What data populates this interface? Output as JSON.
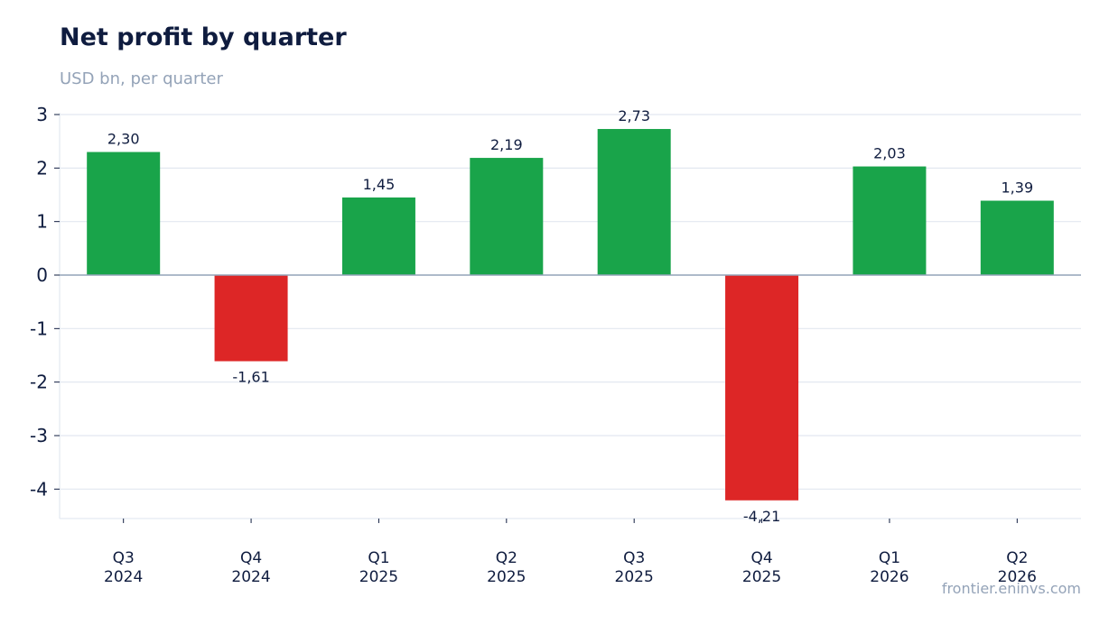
{
  "title": "Net profit by quarter",
  "subtitle": "USD bn, per quarter",
  "source": "frontier.eninvs.com",
  "colors": {
    "positive": "#19a44a",
    "negative": "#dd2626",
    "grid": "#e2e8f0",
    "zero_line": "#94a3b8",
    "text": "#0f1c3f",
    "muted": "#94a3b8"
  },
  "chart_data": {
    "type": "bar",
    "categories": [
      [
        "Q3",
        "2024"
      ],
      [
        "Q4",
        "2024"
      ],
      [
        "Q1",
        "2025"
      ],
      [
        "Q2",
        "2025"
      ],
      [
        "Q3",
        "2025"
      ],
      [
        "Q4",
        "2025"
      ],
      [
        "Q1",
        "2026"
      ],
      [
        "Q2",
        "2026"
      ]
    ],
    "values": [
      2.3,
      -1.61,
      1.45,
      2.19,
      2.73,
      -4.21,
      2.03,
      1.39
    ],
    "value_labels": [
      "2,30",
      "-1,61",
      "1,45",
      "2,19",
      "2,73",
      "-4,21",
      "2,03",
      "1,39"
    ],
    "yticks": [
      3,
      2,
      1,
      0,
      -1,
      -2,
      -3,
      -4
    ],
    "ytick_labels": [
      "3",
      "2",
      "1",
      "0",
      "-1",
      "-2",
      "-3",
      "-4"
    ],
    "ylim": [
      -4.55,
      3
    ],
    "grid": true,
    "legend": "none"
  }
}
